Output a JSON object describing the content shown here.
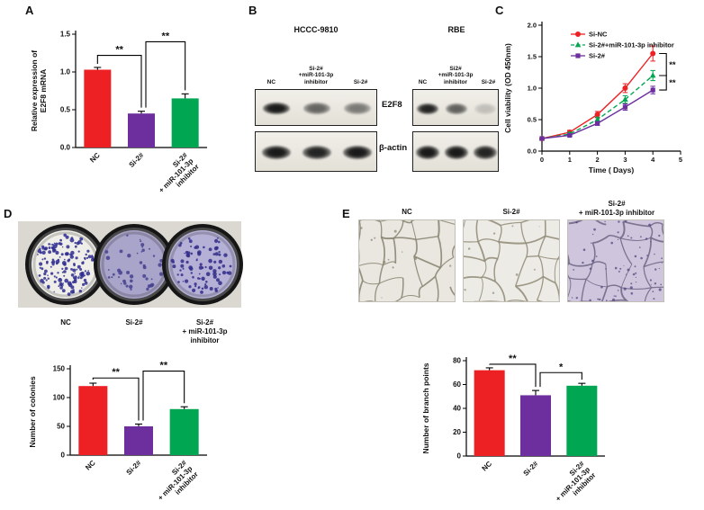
{
  "colors": {
    "red": "#ed2024",
    "purple": "#6d2f9e",
    "green": "#00a651",
    "black": "#000000"
  },
  "panels": {
    "A": {
      "label": "A"
    },
    "B": {
      "label": "B",
      "row_labels": [
        "E2F8",
        "β-actin"
      ],
      "blots": [
        {
          "title": "HCCC-9810",
          "lanes": [
            "NC",
            "Si-2#\n+miR-101-3p\ninhibitor",
            "Si-2#"
          ],
          "e2f8_intensities": [
            0.95,
            0.6,
            0.5
          ],
          "actin_intensities": [
            0.95,
            0.9,
            0.95
          ]
        },
        {
          "title": "RBE",
          "lanes": [
            "NC",
            "Si2#\n+miR-101-3p\ninhibitor",
            "Si-2#"
          ],
          "e2f8_intensities": [
            0.9,
            0.62,
            0.18
          ],
          "actin_intensities": [
            0.95,
            0.95,
            0.9
          ]
        }
      ]
    },
    "C": {
      "label": "C"
    },
    "D": {
      "label": "D",
      "dishes": [
        {
          "label": "NC",
          "fill": "#efeee8",
          "dot_color": "#2e2b8f",
          "dots": 150
        },
        {
          "label": "Si-2#",
          "fill": "#a9a4c9",
          "dot_color": "#47418f",
          "dots": 45
        },
        {
          "label": "Si-2#\n+ miR-101-3p\ninhibitor",
          "fill": "#b5b0d6",
          "dot_color": "#312d88",
          "dots": 90
        }
      ]
    },
    "E": {
      "label": "E",
      "images": [
        {
          "label": "NC",
          "bg": "#e9e7e0",
          "line": "#86816f",
          "specks": 12
        },
        {
          "label": "Si-2#",
          "bg": "#edebe5",
          "line": "#8f8a77",
          "specks": 8
        },
        {
          "label": "Si-2#\n+ miR-101-3p  inhibitor",
          "bg": "#cfc6dd",
          "line": "#6f6585",
          "specks": 70,
          "speck_color": "#4a3f7a"
        }
      ]
    }
  },
  "chart_data": [
    {
      "id": "A",
      "type": "bar",
      "ylabel": "Relative expression of\nE2F8 mRNA",
      "categories": [
        "NC",
        "Si-2#",
        "Si-2#\n+ miR-101-3p\ninhibitor"
      ],
      "values": [
        1.03,
        0.45,
        0.65
      ],
      "errors": [
        0.03,
        0.03,
        0.06
      ],
      "bar_colors": [
        "red",
        "purple",
        "green"
      ],
      "yticks": [
        0,
        0.5,
        1,
        1.5
      ],
      "ylim": [
        0,
        1.5
      ],
      "ytick_decimals": 1,
      "sig": [
        {
          "from": 0,
          "to": 1,
          "label": "**",
          "y": 1.22
        },
        {
          "from": 1,
          "to": 2,
          "label": "**",
          "y": 1.4
        }
      ]
    },
    {
      "id": "C",
      "type": "line",
      "xlabel": "Time ( Days)",
      "ylabel": "Cell viability (OD 450nm)",
      "x": [
        0,
        1,
        2,
        3,
        4
      ],
      "xticks": [
        0,
        1,
        2,
        3,
        4,
        5
      ],
      "xlim": [
        0,
        5
      ],
      "yticks": [
        0,
        0.5,
        1,
        1.5,
        2
      ],
      "ylim": [
        0,
        2
      ],
      "legend_position": "top-left",
      "series": [
        {
          "name": "Si-NC",
          "color": "red",
          "marker": "circle",
          "dashed": false,
          "values": [
            0.2,
            0.3,
            0.58,
            1.0,
            1.55
          ],
          "errors": [
            0.02,
            0.03,
            0.05,
            0.07,
            0.12
          ]
        },
        {
          "name": "Si-2#+miR-101-3p inhibitor",
          "color": "green",
          "marker": "triangle",
          "dashed": true,
          "values": [
            0.2,
            0.27,
            0.5,
            0.82,
            1.2
          ],
          "errors": [
            0.02,
            0.03,
            0.04,
            0.06,
            0.08
          ]
        },
        {
          "name": "Si-2#",
          "color": "purple",
          "marker": "square",
          "dashed": false,
          "values": [
            0.2,
            0.25,
            0.44,
            0.7,
            0.97
          ],
          "errors": [
            0.02,
            0.02,
            0.03,
            0.05,
            0.06
          ]
        }
      ],
      "sig": [
        {
          "between": [
            0,
            1
          ],
          "label": "**"
        },
        {
          "between": [
            1,
            2
          ],
          "label": "**"
        }
      ]
    },
    {
      "id": "D",
      "type": "bar",
      "ylabel": "Number of colonies",
      "categories": [
        "NC",
        "Si-2#",
        "Si-2#\n+ miR-101-3p\ninhibitor"
      ],
      "values": [
        120,
        50,
        80
      ],
      "errors": [
        5,
        4,
        4
      ],
      "bar_colors": [
        "red",
        "purple",
        "green"
      ],
      "yticks": [
        0,
        50,
        100,
        150
      ],
      "ylim": [
        0,
        150
      ],
      "ytick_decimals": 0,
      "sig": [
        {
          "from": 0,
          "to": 1,
          "label": "**",
          "y": 134
        },
        {
          "from": 1,
          "to": 2,
          "label": "**",
          "y": 146
        }
      ]
    },
    {
      "id": "E",
      "type": "bar",
      "ylabel": "Number of branch points",
      "categories": [
        "NC",
        "Si-2#",
        "Si-2#\n+ miR-101-3p\ninhibitor"
      ],
      "values": [
        72,
        51,
        59
      ],
      "errors": [
        2,
        4,
        2
      ],
      "bar_colors": [
        "red",
        "purple",
        "green"
      ],
      "yticks": [
        0,
        20,
        40,
        60,
        80
      ],
      "ylim": [
        0,
        80
      ],
      "ytick_decimals": 0,
      "sig": [
        {
          "from": 0,
          "to": 1,
          "label": "**",
          "y": 77
        },
        {
          "from": 1,
          "to": 2,
          "label": "*",
          "y": 70
        }
      ]
    }
  ]
}
